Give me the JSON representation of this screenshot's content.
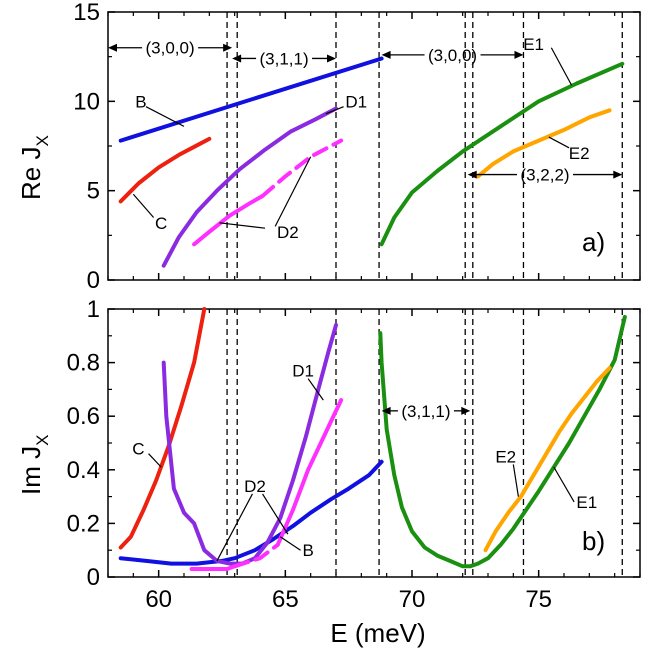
{
  "chart_data": [
    {
      "panel": "a)",
      "type": "line",
      "ylabel": "Re J",
      "ylabel_sub": "X",
      "xlim": [
        58,
        79
      ],
      "ylim": [
        0,
        15
      ],
      "xticks": [
        60,
        65,
        70,
        75
      ],
      "yticks": [
        0,
        5,
        10,
        15
      ],
      "series": [
        {
          "name": "B",
          "color": "#1010e0",
          "dashed": false,
          "x": [
            58.5,
            68.8
          ],
          "y": [
            7.8,
            12.4
          ]
        },
        {
          "name": "C",
          "color": "#ee2010",
          "dashed": false,
          "x": [
            58.5,
            59.2,
            60.0,
            60.8,
            61.6,
            62.0
          ],
          "y": [
            4.4,
            5.4,
            6.3,
            7.0,
            7.6,
            7.9
          ]
        },
        {
          "name": "D1",
          "color": "#8a2be2",
          "dashed": false,
          "x": [
            60.2,
            60.8,
            61.5,
            62.3,
            63.2,
            64.2,
            65.2,
            66.2,
            67.0
          ],
          "y": [
            0.8,
            2.4,
            3.8,
            5.0,
            6.2,
            7.3,
            8.3,
            9.0,
            9.6
          ]
        },
        {
          "name": "D2",
          "color": "#ff30ff",
          "dashed": false,
          "x": [
            61.4,
            62.0,
            62.8,
            63.6,
            64.1
          ],
          "y": [
            2.0,
            2.7,
            3.6,
            4.3,
            4.7
          ]
        },
        {
          "name": "D2",
          "color": "#ff30ff",
          "dashed": true,
          "x": [
            64.1,
            65.0,
            66.0,
            67.2
          ],
          "y": [
            4.7,
            5.8,
            6.9,
            7.8
          ]
        },
        {
          "name": "E1",
          "color": "#1a9010",
          "dashed": false,
          "x": [
            68.8,
            69.3,
            70.0,
            71.0,
            72.0,
            73.5,
            75.0,
            76.5,
            78.3
          ],
          "y": [
            2.0,
            3.5,
            4.9,
            6.1,
            7.2,
            8.6,
            10.0,
            11.0,
            12.1
          ]
        },
        {
          "name": "E2",
          "color": "#ffa500",
          "dashed": false,
          "x": [
            72.6,
            73.2,
            74.0,
            75.0,
            76.0,
            77.0,
            77.8
          ],
          "y": [
            5.8,
            6.5,
            7.2,
            7.8,
            8.4,
            9.1,
            9.5
          ]
        }
      ],
      "vlines": [
        62.7,
        63.1,
        67.0,
        68.7,
        72.1,
        72.4,
        74.4,
        78.3
      ],
      "annotations": [
        {
          "text": "(3,0,0)",
          "x_range": [
            58.0,
            62.9
          ],
          "y": 13.0
        },
        {
          "text": "(3,1,1)",
          "x_range": [
            62.9,
            67.0
          ],
          "y": 12.4
        },
        {
          "text": "(3,0,0)",
          "x_range": [
            68.8,
            74.4
          ],
          "y": 12.6
        },
        {
          "text": "(3,2,2)",
          "x_range": [
            72.2,
            78.3
          ],
          "y": 5.9
        },
        {
          "text": "B",
          "x": 59.3,
          "y": 10.0
        },
        {
          "text": "C",
          "x": 60.1,
          "y": 3.2
        },
        {
          "text": "D1",
          "x": 67.8,
          "y": 10.0
        },
        {
          "text": "D2",
          "x": 65.1,
          "y": 2.7
        },
        {
          "text": "E1",
          "x": 74.8,
          "y": 13.2
        },
        {
          "text": "E2",
          "x": 76.6,
          "y": 7.1
        }
      ]
    },
    {
      "panel": "b)",
      "type": "line",
      "ylabel": "Im J",
      "ylabel_sub": "X",
      "xlabel": "E (meV)",
      "xlim": [
        58,
        79
      ],
      "ylim": [
        0,
        1
      ],
      "xticks": [
        60,
        65,
        70,
        75
      ],
      "yticks": [
        0,
        0.2,
        0.4,
        0.6,
        0.8,
        1
      ],
      "series": [
        {
          "name": "B",
          "color": "#1010e0",
          "dashed": false,
          "x": [
            58.5,
            59.5,
            60.5,
            61.5,
            62.5,
            63.0,
            63.8,
            64.5,
            65.3,
            66.0,
            66.8,
            67.5,
            68.3,
            68.8
          ],
          "y": [
            0.07,
            0.06,
            0.05,
            0.05,
            0.06,
            0.07,
            0.1,
            0.14,
            0.19,
            0.24,
            0.29,
            0.33,
            0.38,
            0.43
          ]
        },
        {
          "name": "C",
          "color": "#ee2010",
          "dashed": false,
          "x": [
            58.5,
            58.9,
            59.4,
            59.9,
            60.4,
            60.9,
            61.4,
            61.8
          ],
          "y": [
            0.11,
            0.15,
            0.25,
            0.36,
            0.49,
            0.64,
            0.8,
            1.0
          ]
        },
        {
          "name": "D1",
          "color": "#8a2be2",
          "dashed": false,
          "x": [
            60.2,
            60.3,
            60.6,
            61.0,
            61.4,
            61.8,
            62.3,
            62.8,
            63.3,
            63.8,
            64.3,
            64.8,
            65.3,
            65.8,
            66.3,
            66.7,
            67.0
          ],
          "y": [
            0.8,
            0.6,
            0.33,
            0.24,
            0.2,
            0.1,
            0.06,
            0.05,
            0.05,
            0.07,
            0.13,
            0.22,
            0.36,
            0.52,
            0.7,
            0.84,
            0.94
          ]
        },
        {
          "name": "D2",
          "color": "#ff30ff",
          "dashed": false,
          "x": [
            61.3,
            62.0,
            62.7,
            63.0
          ],
          "y": [
            0.03,
            0.03,
            0.03,
            0.04
          ]
        },
        {
          "name": "D2",
          "color": "#ff30ff",
          "dashed": true,
          "x": [
            63.0,
            64.0,
            64.7
          ],
          "y": [
            0.04,
            0.07,
            0.12
          ]
        },
        {
          "name": "D2",
          "color": "#ff30ff",
          "dashed": false,
          "x": [
            64.7,
            65.3,
            65.9,
            66.4,
            66.8,
            67.2
          ],
          "y": [
            0.12,
            0.25,
            0.4,
            0.5,
            0.58,
            0.66
          ]
        },
        {
          "name": "E1",
          "color": "#1a9010",
          "dashed": false,
          "x": [
            68.75,
            68.8,
            69.0,
            69.3,
            69.6,
            70.0,
            70.5,
            71.0,
            71.5,
            72.0,
            72.3,
            72.6,
            73.0,
            73.5,
            74.0,
            74.5,
            75.0,
            75.6,
            76.2,
            76.8,
            77.4,
            78.0,
            78.4
          ],
          "y": [
            0.91,
            0.8,
            0.55,
            0.38,
            0.26,
            0.17,
            0.11,
            0.08,
            0.06,
            0.04,
            0.04,
            0.05,
            0.07,
            0.12,
            0.18,
            0.25,
            0.32,
            0.41,
            0.5,
            0.6,
            0.7,
            0.81,
            0.97
          ]
        },
        {
          "name": "E2",
          "color": "#ffa500",
          "dashed": false,
          "x": [
            72.9,
            73.3,
            73.8,
            74.3,
            74.8,
            75.3,
            75.8,
            76.3,
            76.8,
            77.3,
            77.8
          ],
          "y": [
            0.1,
            0.17,
            0.24,
            0.3,
            0.38,
            0.46,
            0.54,
            0.61,
            0.67,
            0.73,
            0.78
          ]
        }
      ],
      "vlines": [
        62.7,
        63.1,
        67.0,
        68.7,
        72.1,
        72.4,
        74.4,
        78.3
      ],
      "annotations": [
        {
          "text": "(3,1,1)",
          "x_range": [
            68.8,
            72.3
          ],
          "y": 0.62
        },
        {
          "text": "C",
          "x": 59.2,
          "y": 0.48
        },
        {
          "text": "D1",
          "x": 65.7,
          "y": 0.77
        },
        {
          "text": "D2",
          "x": 63.8,
          "y": 0.34
        },
        {
          "text": "B",
          "x": 65.9,
          "y": 0.1
        },
        {
          "text": "E2",
          "x": 73.7,
          "y": 0.45
        },
        {
          "text": "E1",
          "x": 76.9,
          "y": 0.28
        }
      ]
    }
  ]
}
